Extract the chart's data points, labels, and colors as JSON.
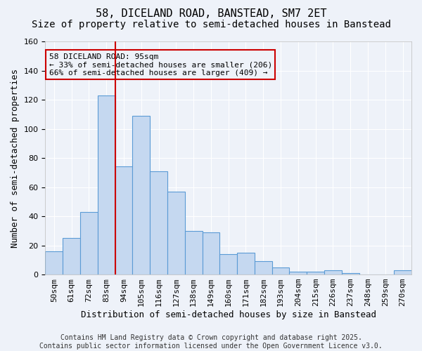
{
  "title_line1": "58, DICELAND ROAD, BANSTEAD, SM7 2ET",
  "title_line2": "Size of property relative to semi-detached houses in Banstead",
  "xlabel": "Distribution of semi-detached houses by size in Banstead",
  "ylabel": "Number of semi-detached properties",
  "categories": [
    "50sqm",
    "61sqm",
    "72sqm",
    "83sqm",
    "94sqm",
    "105sqm",
    "116sqm",
    "127sqm",
    "138sqm",
    "149sqm",
    "160sqm",
    "171sqm",
    "182sqm",
    "193sqm",
    "204sqm",
    "215sqm",
    "226sqm",
    "237sqm",
    "248sqm",
    "259sqm",
    "270sqm"
  ],
  "values": [
    16,
    25,
    43,
    123,
    74,
    109,
    71,
    57,
    30,
    29,
    14,
    15,
    9,
    5,
    2,
    2,
    3,
    1,
    0,
    0,
    3
  ],
  "bar_color": "#c5d8f0",
  "bar_edge_color": "#5b9bd5",
  "highlight_line_color": "#cc0000",
  "ylim": [
    0,
    160
  ],
  "yticks": [
    0,
    20,
    40,
    60,
    80,
    100,
    120,
    140,
    160
  ],
  "annotation_title": "58 DICELAND ROAD: 95sqm",
  "annotation_line1": "← 33% of semi-detached houses are smaller (206)",
  "annotation_line2": "66% of semi-detached houses are larger (409) →",
  "annotation_box_color": "#cc0000",
  "footer_line1": "Contains HM Land Registry data © Crown copyright and database right 2025.",
  "footer_line2": "Contains public sector information licensed under the Open Government Licence v3.0.",
  "background_color": "#eef2f9",
  "grid_color": "#ffffff",
  "title_fontsize": 11,
  "subtitle_fontsize": 10,
  "axis_label_fontsize": 9,
  "tick_fontsize": 8,
  "annotation_fontsize": 8,
  "footer_fontsize": 7
}
